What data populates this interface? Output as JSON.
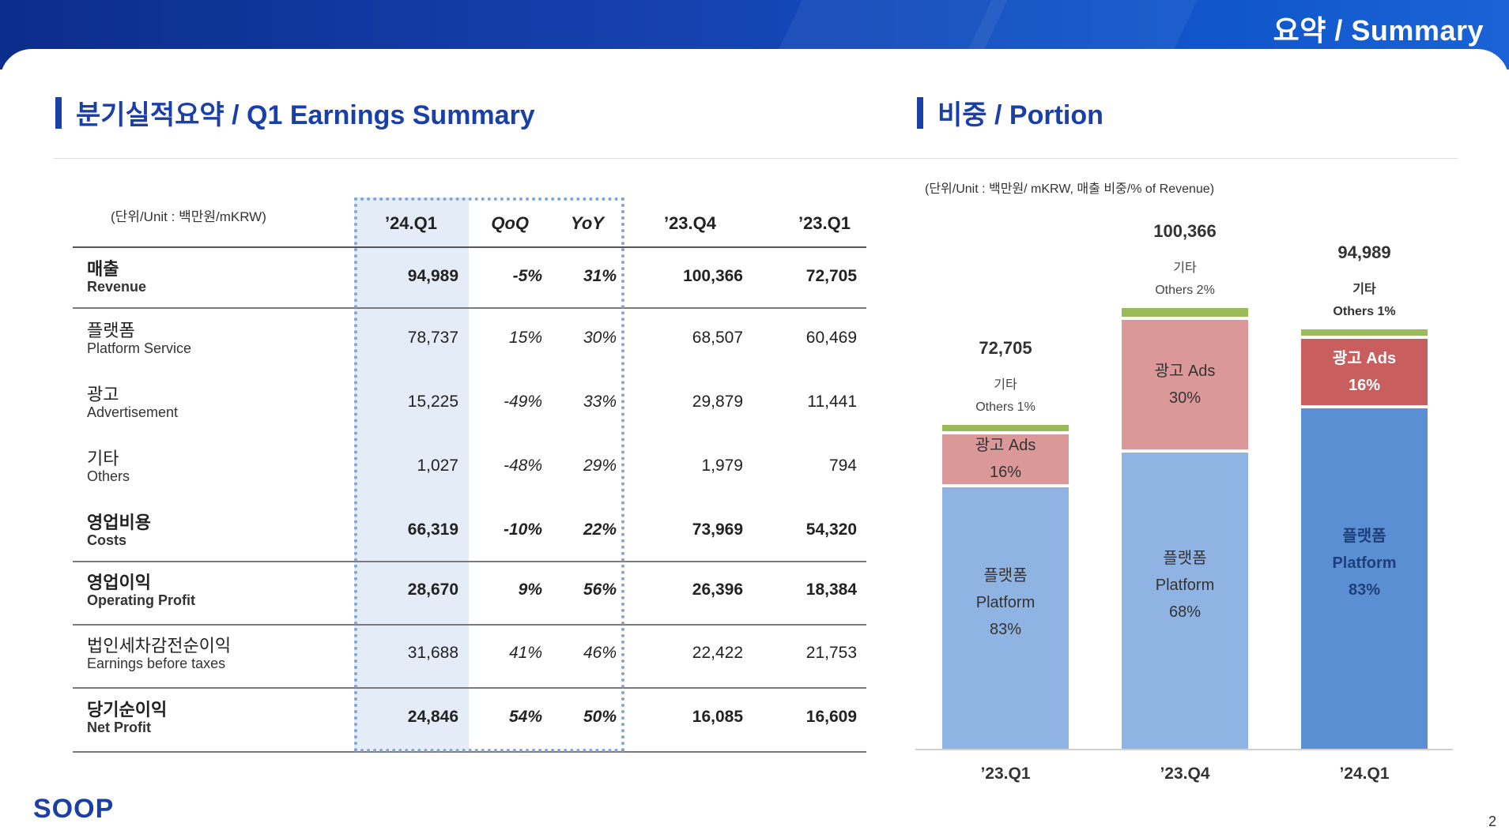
{
  "header": {
    "title": "요약 /  Summary"
  },
  "sections": {
    "left_title": "분기실적요약 / Q1 Earnings Summary",
    "right_title": "비중 / Portion"
  },
  "table": {
    "unit": "(단위/Unit : 백만원/mKRW)",
    "columns": [
      "’24.Q1",
      "QoQ",
      "YoY",
      "’23.Q4",
      "’23.Q1"
    ],
    "rows": [
      {
        "ko": "매출",
        "en": "Revenue",
        "bold": true,
        "values": [
          "94,989",
          "-5%",
          "31%",
          "100,366",
          "72,705"
        ]
      },
      {
        "ko": "플랫폼",
        "en": "Platform Service",
        "bold": false,
        "values": [
          "78,737",
          "15%",
          "30%",
          "68,507",
          "60,469"
        ]
      },
      {
        "ko": "광고",
        "en": "Advertisement",
        "bold": false,
        "values": [
          "15,225",
          "-49%",
          "33%",
          "29,879",
          "11,441"
        ]
      },
      {
        "ko": "기타",
        "en": "Others",
        "bold": false,
        "values": [
          "1,027",
          "-48%",
          "29%",
          "1,979",
          "794"
        ]
      },
      {
        "ko": "영업비용",
        "en": "Costs",
        "bold": true,
        "values": [
          "66,319",
          "-10%",
          "22%",
          "73,969",
          "54,320"
        ]
      },
      {
        "ko": "영업이익",
        "en": "Operating Profit",
        "bold": true,
        "values": [
          "28,670",
          "9%",
          "56%",
          "26,396",
          "18,384"
        ]
      },
      {
        "ko": "법인세차감전순이익",
        "en": "Earnings before taxes",
        "bold": false,
        "values": [
          "31,688",
          "41%",
          "46%",
          "22,422",
          "21,753"
        ]
      },
      {
        "ko": "당기순이익",
        "en": "Net Profit",
        "bold": true,
        "values": [
          "24,846",
          "54%",
          "50%",
          "16,085",
          "16,609"
        ]
      }
    ]
  },
  "chart_data": {
    "type": "bar",
    "unit": "(단위/Unit : 백만원/ mKRW, 매출 비중/% of Revenue)",
    "categories": [
      "’23.Q1",
      "’23.Q4",
      "’24.Q1"
    ],
    "totals": [
      "72,705",
      "100,366",
      "94,989"
    ],
    "total_values": [
      72705,
      100366,
      94989
    ],
    "series": [
      {
        "name": "플랫폼 Platform",
        "ko": "플랫폼",
        "en": "Platform",
        "values": [
          60469,
          68507,
          78737
        ],
        "pct": [
          "83%",
          "68%",
          "83%"
        ]
      },
      {
        "name": "광고 Ads",
        "ko": "광고",
        "en": "Ads",
        "values": [
          11441,
          29879,
          15225
        ],
        "pct": [
          "16%",
          "30%",
          "16%"
        ]
      },
      {
        "name": "기타 Others",
        "ko": "기타",
        "en": "Others",
        "values": [
          794,
          1979,
          1027
        ],
        "pct": [
          "1%",
          "2%",
          "1%"
        ]
      }
    ],
    "colors": {
      "platform": [
        "#8fb4e4",
        "#8fb4e4",
        "#5b8fd4"
      ],
      "ads": [
        "#db9898",
        "#db9898",
        "#c85e5e"
      ],
      "others": "#9bbb59"
    },
    "highlight_last": true
  },
  "footer": {
    "logo": "SOOP",
    "page": "2"
  }
}
